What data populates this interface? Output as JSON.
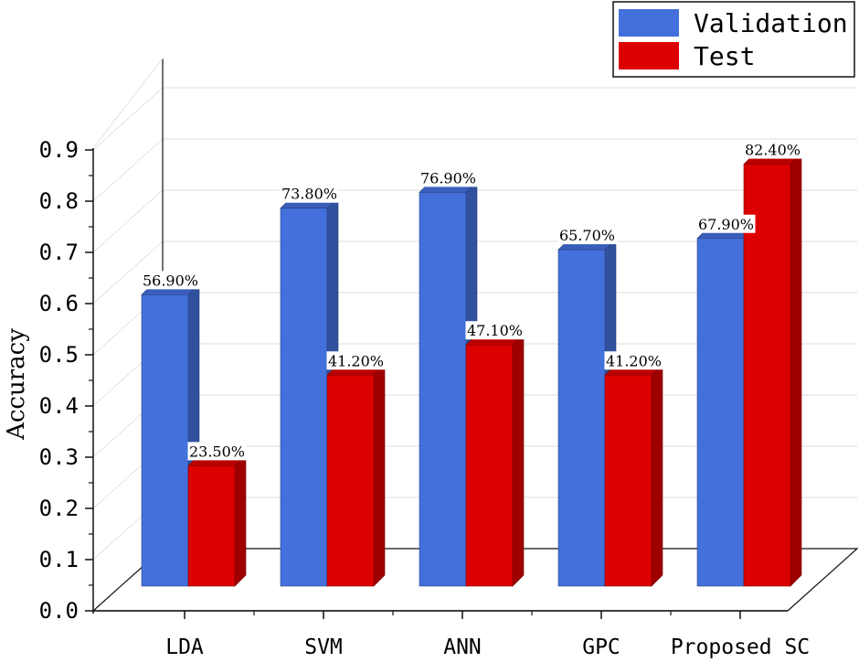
{
  "chart_data": {
    "type": "bar",
    "title": "",
    "xlabel": "",
    "ylabel": "Accuracy",
    "ylim": [
      0,
      0.9
    ],
    "yticks": [
      "0.0",
      "0.1",
      "0.2",
      "0.3",
      "0.4",
      "0.5",
      "0.6",
      "0.7",
      "0.8",
      "0.9"
    ],
    "categories": [
      "LDA",
      "SVM",
      "ANN",
      "GPC",
      "Proposed SC"
    ],
    "series": [
      {
        "name": "Validation",
        "color": "#4470dc",
        "values": [
          0.569,
          0.738,
          0.769,
          0.657,
          0.679
        ],
        "labels": [
          "56.90%",
          "73.80%",
          "76.90%",
          "65.70%",
          "67.90%"
        ]
      },
      {
        "name": "Test",
        "color": "#dc0000",
        "values": [
          0.235,
          0.412,
          0.471,
          0.412,
          0.824
        ],
        "labels": [
          "23.50%",
          "41.20%",
          "47.10%",
          "41.20%",
          "82.40%"
        ]
      }
    ],
    "legend_position": "top-right",
    "grid": true,
    "style": "3d"
  }
}
